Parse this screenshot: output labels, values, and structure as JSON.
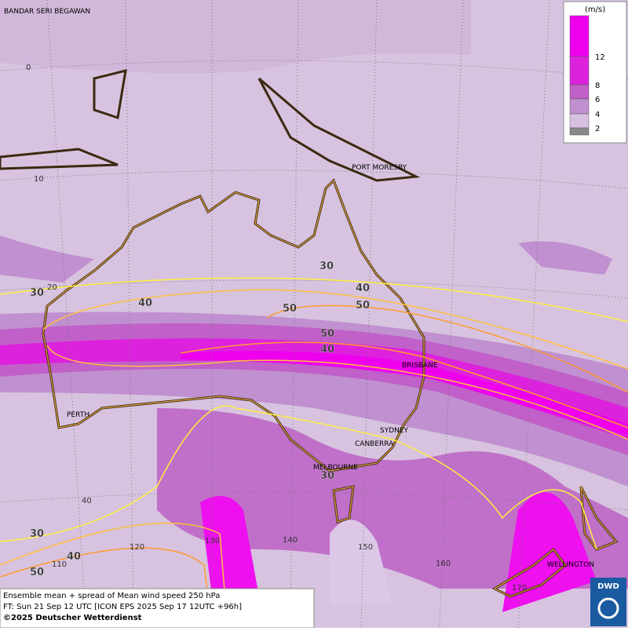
{
  "map": {
    "cities": [
      "BANDAR SERI BEGAWAN",
      "PORT MORESBY",
      "BRISBANE",
      "PERTH",
      "SYDNEY",
      "CANBERRA",
      "MELBOURNE",
      "WELLINGTON"
    ],
    "lat_labels": [
      "0",
      "10",
      "20",
      "40"
    ],
    "lon_labels": [
      "110",
      "120",
      "130",
      "140",
      "150",
      "160",
      "170"
    ],
    "contour_labels": [
      30,
      40,
      30,
      40,
      50,
      50,
      50,
      40,
      30,
      30,
      40,
      50
    ],
    "legend": {
      "unit": "(m/s)",
      "ticks": [
        12,
        8,
        6,
        4,
        2
      ]
    },
    "caption": [
      "Ensemble mean + spread of Mean wind speed 250 hPa",
      "FT: Sun 21 Sep 12 UTC [ICON EPS 2025 Sep 17 12UTC +96h]",
      "©2025 Deutscher Wetterdienst"
    ],
    "logo": "DWD"
  }
}
